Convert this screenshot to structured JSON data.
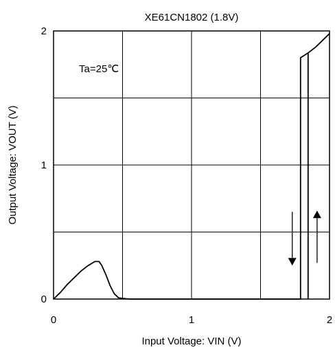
{
  "chart_data": {
    "type": "line",
    "title": "XE61CN1802 (1.8V)",
    "xlabel": "Input Voltage:  VIN (V)",
    "ylabel": "Output Voltage:  VOUT (V)",
    "xlim": [
      0,
      2
    ],
    "ylim": [
      0,
      2
    ],
    "xticks": [
      "0",
      "1",
      "2"
    ],
    "yticks": [
      "0",
      "1",
      "2"
    ],
    "x_minor_grid": [
      0.5,
      1.5
    ],
    "y_minor_grid": [
      0.5,
      1.5
    ],
    "grid": true,
    "annotation": "Ta=25℃",
    "series": [
      {
        "points": [
          [
            0.0,
            0.0
          ],
          [
            0.05,
            0.05
          ],
          [
            0.1,
            0.11
          ],
          [
            0.15,
            0.16
          ],
          [
            0.2,
            0.21
          ],
          [
            0.25,
            0.25
          ],
          [
            0.3,
            0.28
          ],
          [
            0.33,
            0.28
          ],
          [
            0.35,
            0.25
          ],
          [
            0.38,
            0.18
          ],
          [
            0.41,
            0.1
          ],
          [
            0.44,
            0.04
          ],
          [
            0.47,
            0.01
          ],
          [
            0.5,
            0.005
          ],
          [
            0.55,
            0.0
          ],
          [
            1.0,
            0.0
          ],
          [
            1.79,
            0.0
          ],
          [
            1.79,
            1.8
          ],
          [
            1.85,
            1.84
          ],
          [
            1.9,
            1.88
          ],
          [
            1.95,
            1.93
          ],
          [
            2.0,
            1.98
          ]
        ]
      },
      {
        "points": [
          [
            1.845,
            0.0
          ],
          [
            1.845,
            1.84
          ]
        ]
      }
    ],
    "arrows": [
      {
        "x": 1.73,
        "from_y": 0.65,
        "to_y": 0.25,
        "direction": "down"
      },
      {
        "x": 1.91,
        "from_y": 0.27,
        "to_y": 0.66,
        "direction": "up"
      }
    ]
  }
}
